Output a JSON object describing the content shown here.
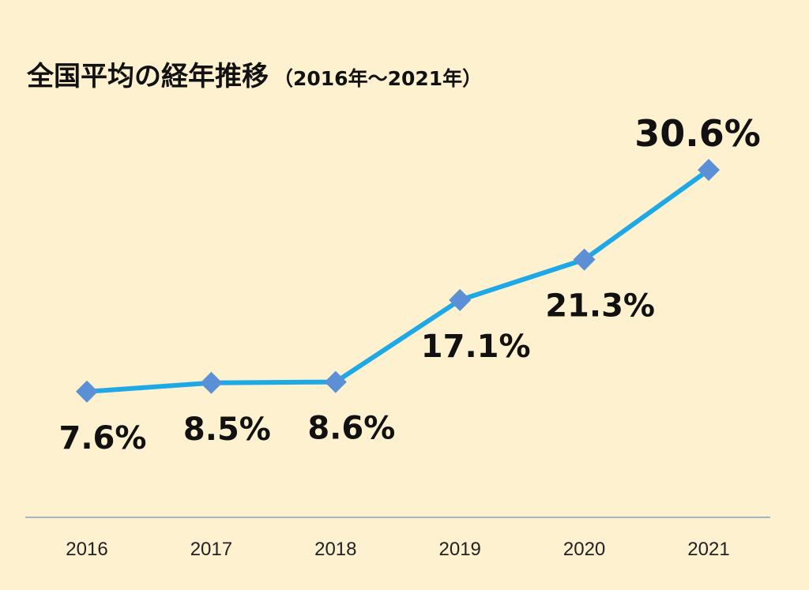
{
  "title": {
    "main": "全国平均の経年推移",
    "sub": "（2016年～2021年）"
  },
  "colors": {
    "background": "#fdf1d0",
    "line": "#1fa8e6",
    "marker": "#5b8fd6",
    "label": "#111111",
    "highlight_label": "#ff1a1a",
    "axis": "#a9b3bd"
  },
  "chart_data": {
    "type": "line",
    "title": "全国平均の経年推移（2016年～2021年）",
    "x": [
      "2016",
      "2017",
      "2018",
      "2019",
      "2020",
      "2021"
    ],
    "series": [
      {
        "values": [
          7.6,
          8.5,
          8.6,
          17.1,
          21.3,
          30.6
        ],
        "labels": [
          "7.6%",
          "8.5%",
          "8.6%",
          "17.1%",
          "21.3%",
          "30.6%"
        ]
      }
    ],
    "highlight_index": 5,
    "marker": "diamond",
    "grid": false,
    "legend": "none"
  }
}
